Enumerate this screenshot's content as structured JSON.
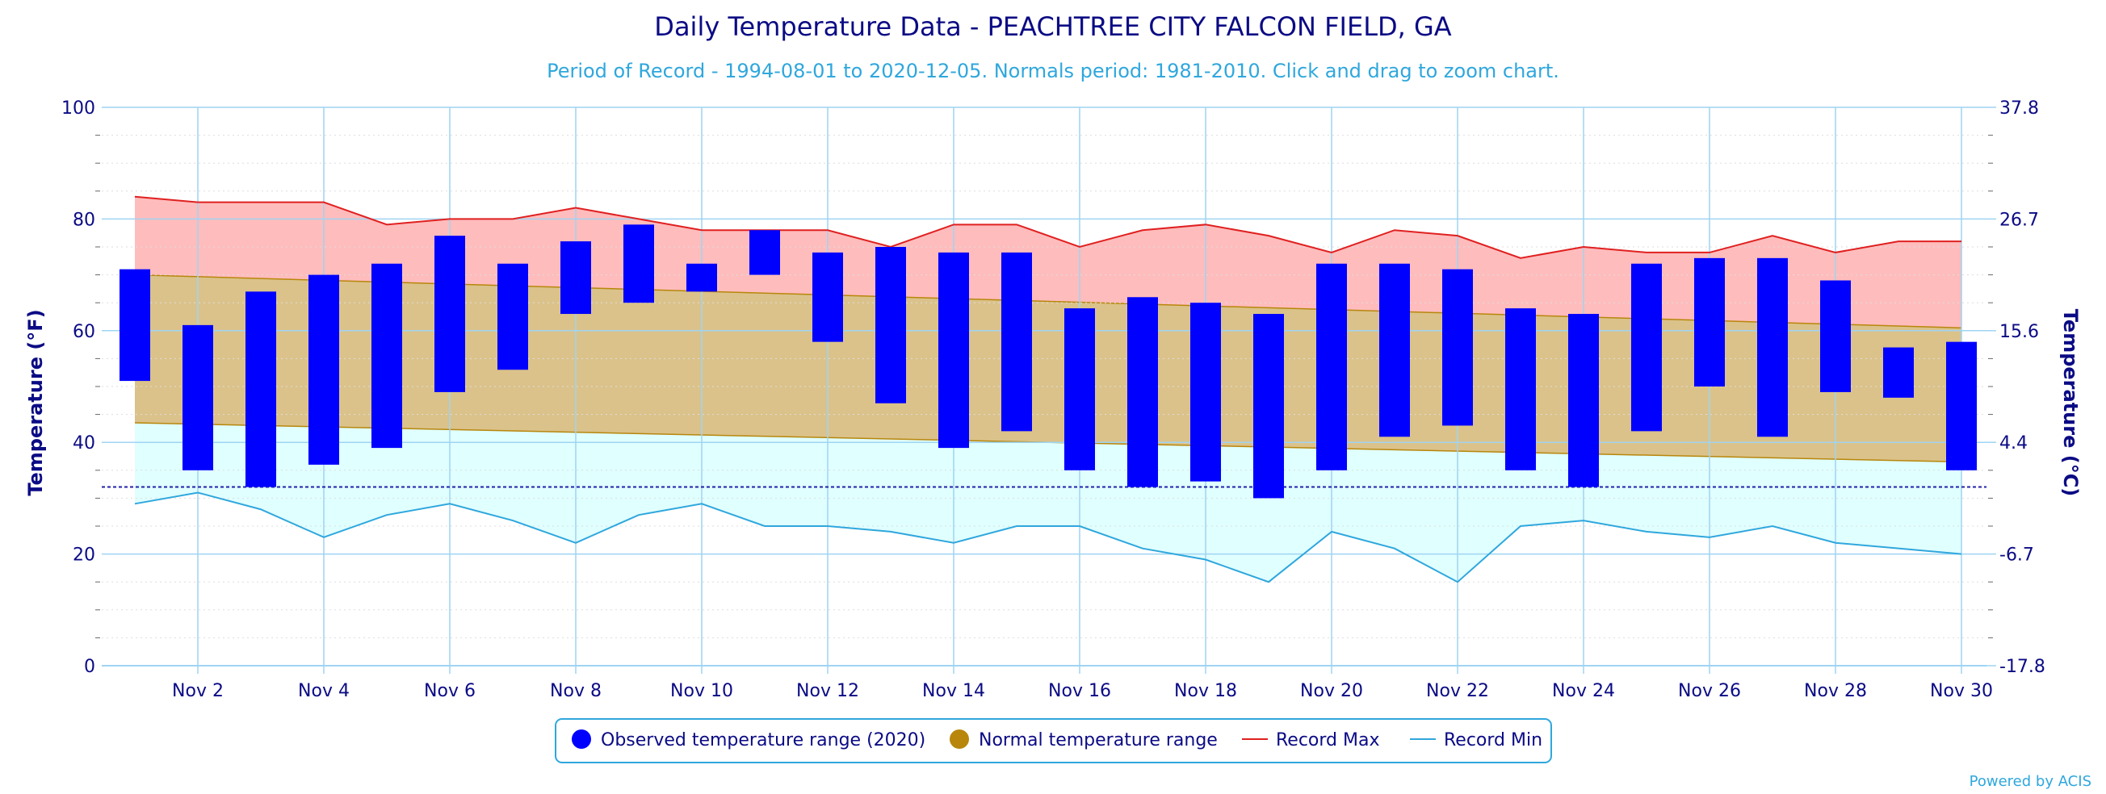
{
  "chart_data": {
    "type": "bar",
    "title": "Daily Temperature Data - PEACHTREE CITY FALCON FIELD, GA",
    "subtitle": "Period of Record - 1994-08-01 to 2020-12-05. Normals period: 1981-2010. Click and drag to zoom chart.",
    "ylabel": "Temperature (°F)",
    "ylabel_right": "Temperature (°C)",
    "ylim": [
      0,
      100
    ],
    "yticks": [
      0,
      20,
      40,
      60,
      80,
      100
    ],
    "yticks_right": [
      "-17.8",
      "-6.7",
      "4.4",
      "15.6",
      "26.7",
      "37.8"
    ],
    "x_days": [
      1,
      30
    ],
    "xtick_labels": [
      "Nov 2",
      "Nov 4",
      "Nov 6",
      "Nov 8",
      "Nov 10",
      "Nov 12",
      "Nov 14",
      "Nov 16",
      "Nov 18",
      "Nov 20",
      "Nov 22",
      "Nov 24",
      "Nov 26",
      "Nov 28",
      "Nov 30"
    ],
    "freezing_line": 32,
    "grid": true,
    "legend_position": "bottom-center",
    "series": [
      {
        "name": "Observed temperature range (2020)",
        "kind": "columnrange",
        "color": "#0000ff",
        "days": [
          1,
          2,
          3,
          4,
          5,
          6,
          7,
          8,
          9,
          10,
          11,
          12,
          13,
          14,
          15,
          16,
          17,
          18,
          19,
          20,
          21,
          22,
          23,
          24,
          25,
          26,
          27,
          28,
          29,
          30
        ],
        "low": [
          51,
          35,
          32,
          36,
          39,
          49,
          53,
          63,
          65,
          67,
          70,
          58,
          47,
          39,
          42,
          35,
          32,
          33,
          30,
          35,
          41,
          43,
          35,
          32,
          42,
          50,
          41,
          49,
          48,
          35
        ],
        "high": [
          71,
          61,
          67,
          70,
          72,
          77,
          72,
          76,
          79,
          72,
          78,
          74,
          75,
          74,
          74,
          64,
          66,
          65,
          63,
          72,
          72,
          71,
          64,
          63,
          72,
          73,
          73,
          69,
          57,
          58
        ]
      },
      {
        "name": "Normal temperature range",
        "kind": "arearange",
        "color": "#b8860b",
        "days": [
          1,
          30
        ],
        "low": [
          43.5,
          36.5
        ],
        "high": [
          70,
          60.5
        ]
      },
      {
        "name": "Record Max",
        "kind": "line",
        "color": "#e02020",
        "days": [
          1,
          2,
          3,
          4,
          5,
          6,
          7,
          8,
          9,
          10,
          11,
          12,
          13,
          14,
          15,
          16,
          17,
          18,
          19,
          20,
          21,
          22,
          23,
          24,
          25,
          26,
          27,
          28,
          29,
          30
        ],
        "values": [
          84,
          83,
          83,
          83,
          79,
          80,
          80,
          82,
          80,
          78,
          78,
          78,
          75,
          79,
          79,
          75,
          78,
          79,
          77,
          74,
          78,
          77,
          73,
          75,
          74,
          74,
          77,
          74,
          76,
          76
        ]
      },
      {
        "name": "Record Min",
        "kind": "line",
        "color": "#2fa7dd",
        "days": [
          1,
          2,
          3,
          4,
          5,
          6,
          7,
          8,
          9,
          10,
          11,
          12,
          13,
          14,
          15,
          16,
          17,
          18,
          19,
          20,
          21,
          22,
          23,
          24,
          25,
          26,
          27,
          28,
          29,
          30
        ],
        "values": [
          29,
          31,
          28,
          23,
          27,
          29,
          26,
          22,
          27,
          29,
          25,
          25,
          24,
          22,
          25,
          25,
          21,
          19,
          15,
          24,
          21,
          15,
          25,
          26,
          24,
          23,
          25,
          22,
          21,
          20
        ]
      }
    ]
  },
  "colors": {
    "record_band": "#ffbcbc",
    "normal_band": "#dbc28a",
    "below_normal_band": "#e0ffff",
    "grid": "#9fd4f2",
    "text": "#0b0b85",
    "freezing_line": "#2222aa"
  },
  "credit": "Powered by ACIS"
}
